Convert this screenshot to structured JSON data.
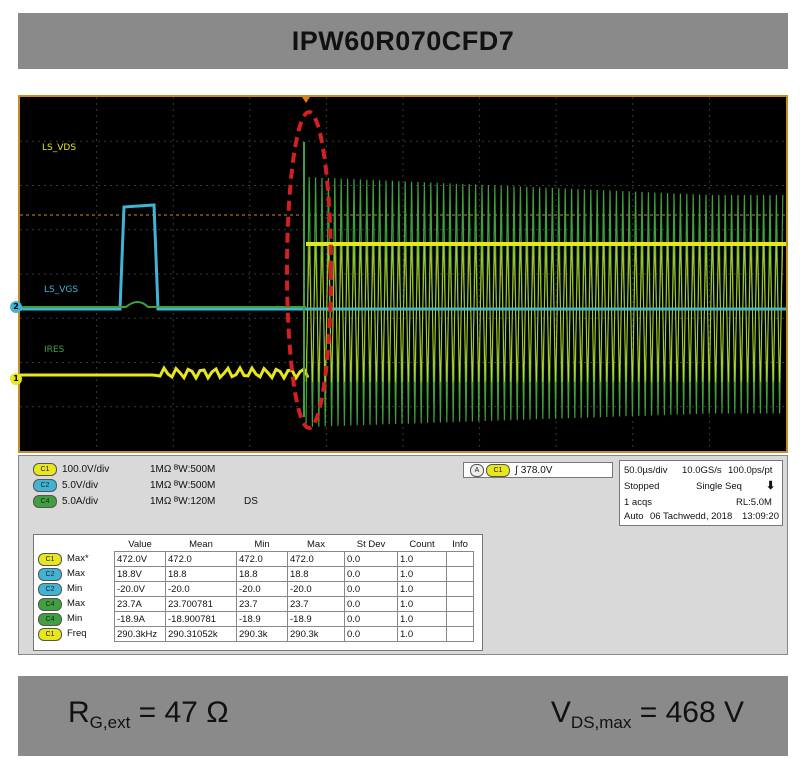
{
  "header": {
    "title": "IPW60R070CFD7"
  },
  "footer": {
    "rg": {
      "main": "R",
      "sub": "G,ext",
      "value": "= 47 Ω"
    },
    "vds": {
      "main": "V",
      "sub": "DS,max",
      "value": "= 468 V"
    }
  },
  "scope": {
    "traces": {
      "ls_vds_top": "LS_VDS",
      "ls_vgs": "LS_VGS",
      "ires": "IRES"
    },
    "markers": {
      "ch2": "2",
      "ch1": "1"
    },
    "colors": {
      "ch1": "#e8e61c",
      "ch2": "#41b4d6",
      "ch4": "#3fa03f",
      "highlight": "#d42020",
      "frame": "#c58f1c"
    }
  },
  "channels": [
    {
      "badge": "C1",
      "scale": "100.0V/div",
      "impedance": "1MΩ",
      "bw": "500M",
      "extra": ""
    },
    {
      "badge": "C2",
      "scale": "5.0V/div",
      "impedance": "1MΩ",
      "bw": "500M",
      "extra": ""
    },
    {
      "badge": "C4",
      "scale": "5.0A/div",
      "impedance": "1MΩ",
      "bw": "120M",
      "extra": "DS"
    }
  ],
  "trigger": {
    "source_a": "A",
    "badge": "C1",
    "level": "378.0V"
  },
  "timebase": {
    "div": "50.0µs/div",
    "rate": "10.0GS/s",
    "ps": "100.0ps/pt",
    "state": "Stopped",
    "mode": "Single Seq",
    "acqs": "1 acqs",
    "rl": "RL:5.0M",
    "auto": "Auto",
    "date": "06 Tachwedd, 2018",
    "time": "13:09:20"
  },
  "measurements": {
    "headers": [
      "Value",
      "Mean",
      "Min",
      "Max",
      "St Dev",
      "Count",
      "Info"
    ],
    "rows": [
      {
        "badge": "C1",
        "label": "Max*",
        "value": "472.0V",
        "mean": "472.0",
        "min": "472.0",
        "max": "472.0",
        "stdev": "0.0",
        "count": "1.0"
      },
      {
        "badge": "C2",
        "label": "Max",
        "value": "18.8V",
        "mean": "18.8",
        "min": "18.8",
        "max": "18.8",
        "stdev": "0.0",
        "count": "1.0"
      },
      {
        "badge": "C2",
        "label": "Min",
        "value": "-20.0V",
        "mean": "-20.0",
        "min": "-20.0",
        "max": "-20.0",
        "stdev": "0.0",
        "count": "1.0"
      },
      {
        "badge": "C4",
        "label": "Max",
        "value": "23.7A",
        "mean": "23.700781",
        "min": "23.7",
        "max": "23.7",
        "stdev": "0.0",
        "count": "1.0"
      },
      {
        "badge": "C4",
        "label": "Min",
        "value": "-18.9A",
        "mean": "-18.900781",
        "min": "-18.9",
        "max": "-18.9",
        "stdev": "0.0",
        "count": "1.0"
      },
      {
        "badge": "C1",
        "label": "Freq",
        "value": "290.3kHz",
        "mean": "290.31052k",
        "min": "290.3k",
        "max": "290.3k",
        "stdev": "0.0",
        "count": "1.0"
      }
    ]
  }
}
